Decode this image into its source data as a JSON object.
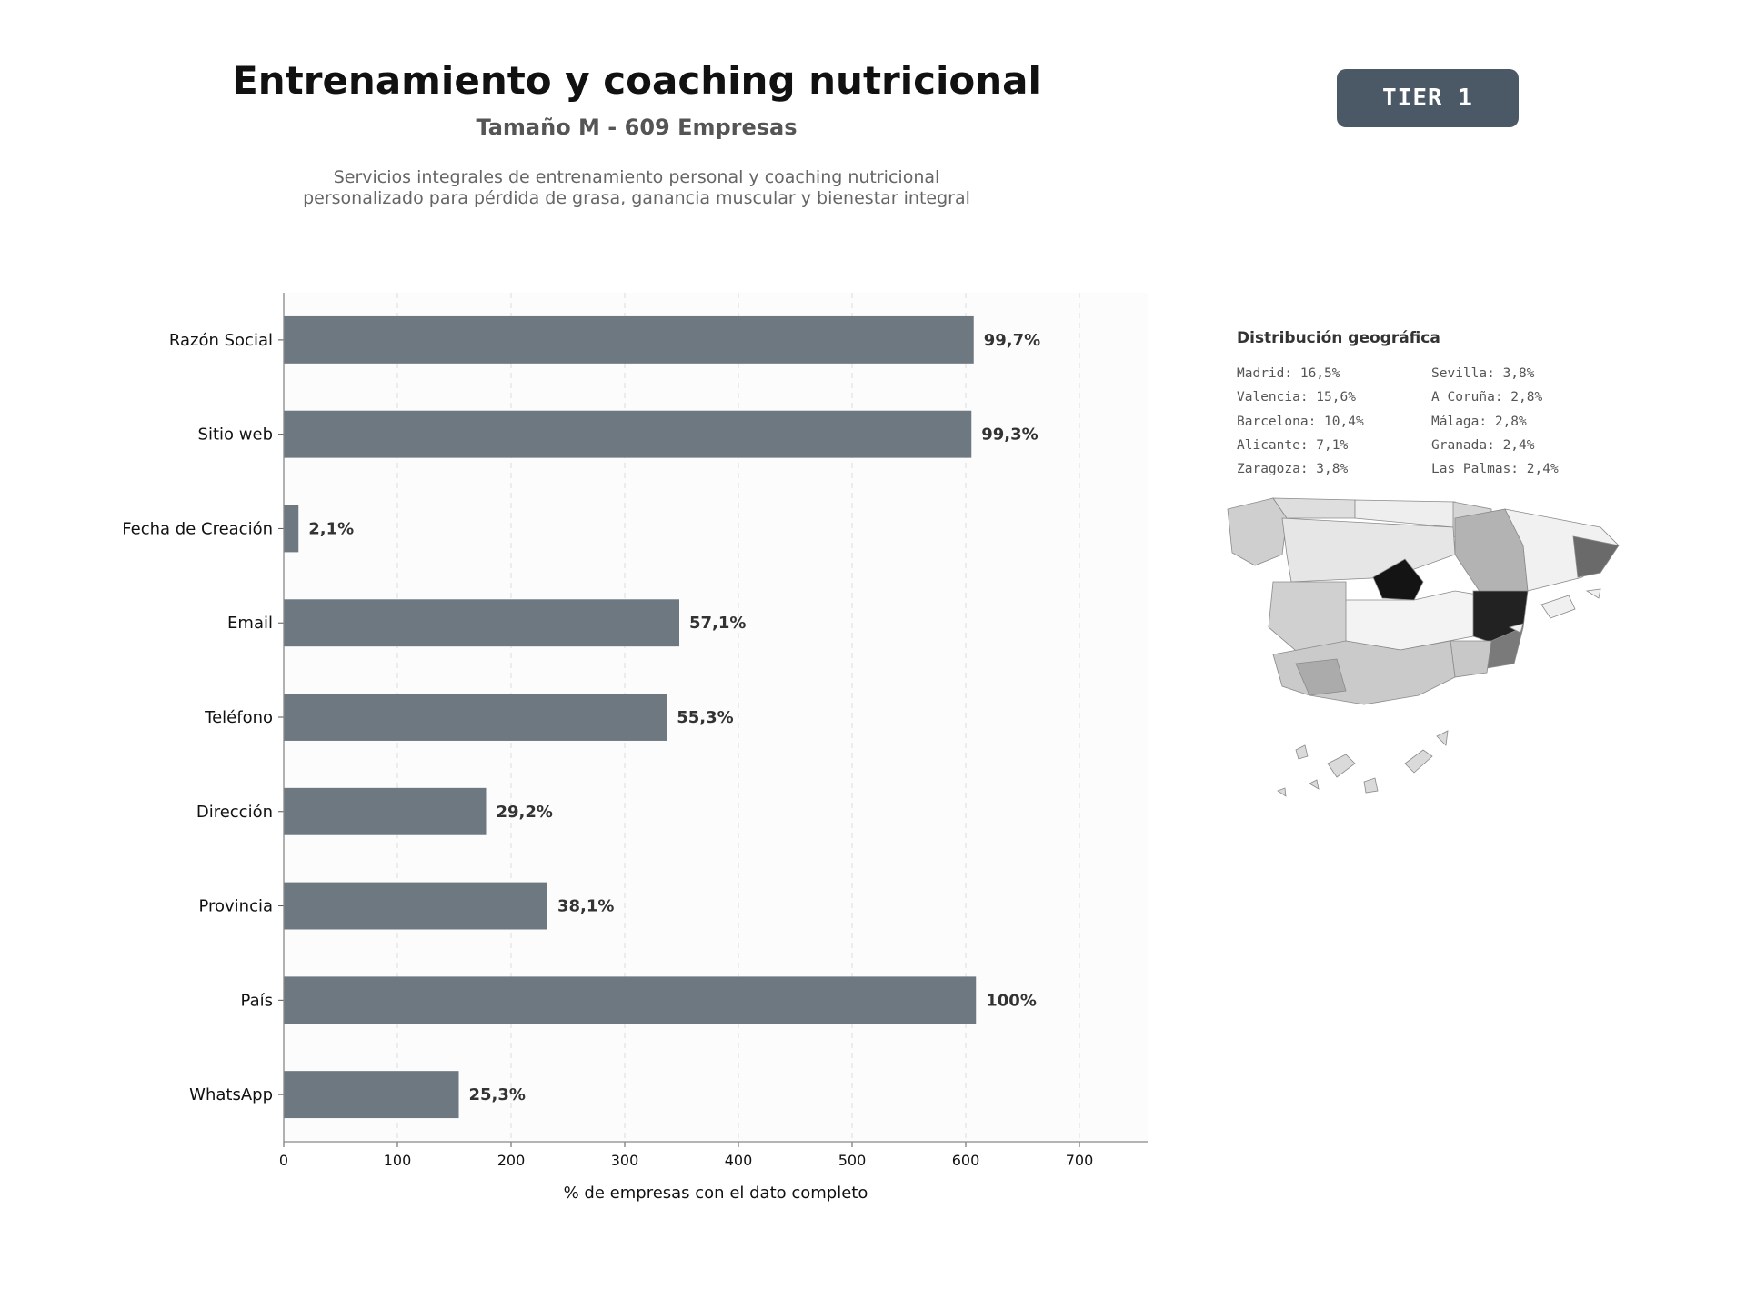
{
  "header": {
    "title": "Entrenamiento y coaching nutricional",
    "subtitle": "Tamaño M - 609 Empresas",
    "description": "Servicios integrales de entrenamiento personal y coaching nutricional personalizado para pérdida de grasa, ganancia muscular y bienestar integral"
  },
  "badge": {
    "label": "TIER 1"
  },
  "chart_data": {
    "type": "bar",
    "orientation": "horizontal",
    "categories": [
      "Razón Social",
      "Sitio web",
      "Fecha de Creación",
      "Email",
      "Teléfono",
      "Dirección",
      "Provincia",
      "País",
      "WhatsApp"
    ],
    "values": [
      607,
      605,
      13,
      348,
      337,
      178,
      232,
      609,
      154
    ],
    "data_labels": [
      "99,7%",
      "99,3%",
      "2,1%",
      "57,1%",
      "55,3%",
      "29,2%",
      "38,1%",
      "100%",
      "25,3%"
    ],
    "xlabel": "% de empresas con el dato completo",
    "ylabel": "",
    "xlim": [
      0,
      760
    ],
    "xticks": [
      0,
      100,
      200,
      300,
      400,
      500,
      600,
      700
    ],
    "grid": "vertical dashed",
    "bar_color": "#6e7881"
  },
  "geo": {
    "title": "Distribución geográfica",
    "items": [
      "Madrid: 16,5%",
      "Sevilla: 3,8%",
      "Valencia: 15,6%",
      "A Coruña: 2,8%",
      "Barcelona: 10,4%",
      "Málaga: 2,8%",
      "Alicante: 7,1%",
      "Granada: 2,4%",
      "Zaragoza: 3,8%",
      "Las Palmas: 2,4%"
    ]
  }
}
